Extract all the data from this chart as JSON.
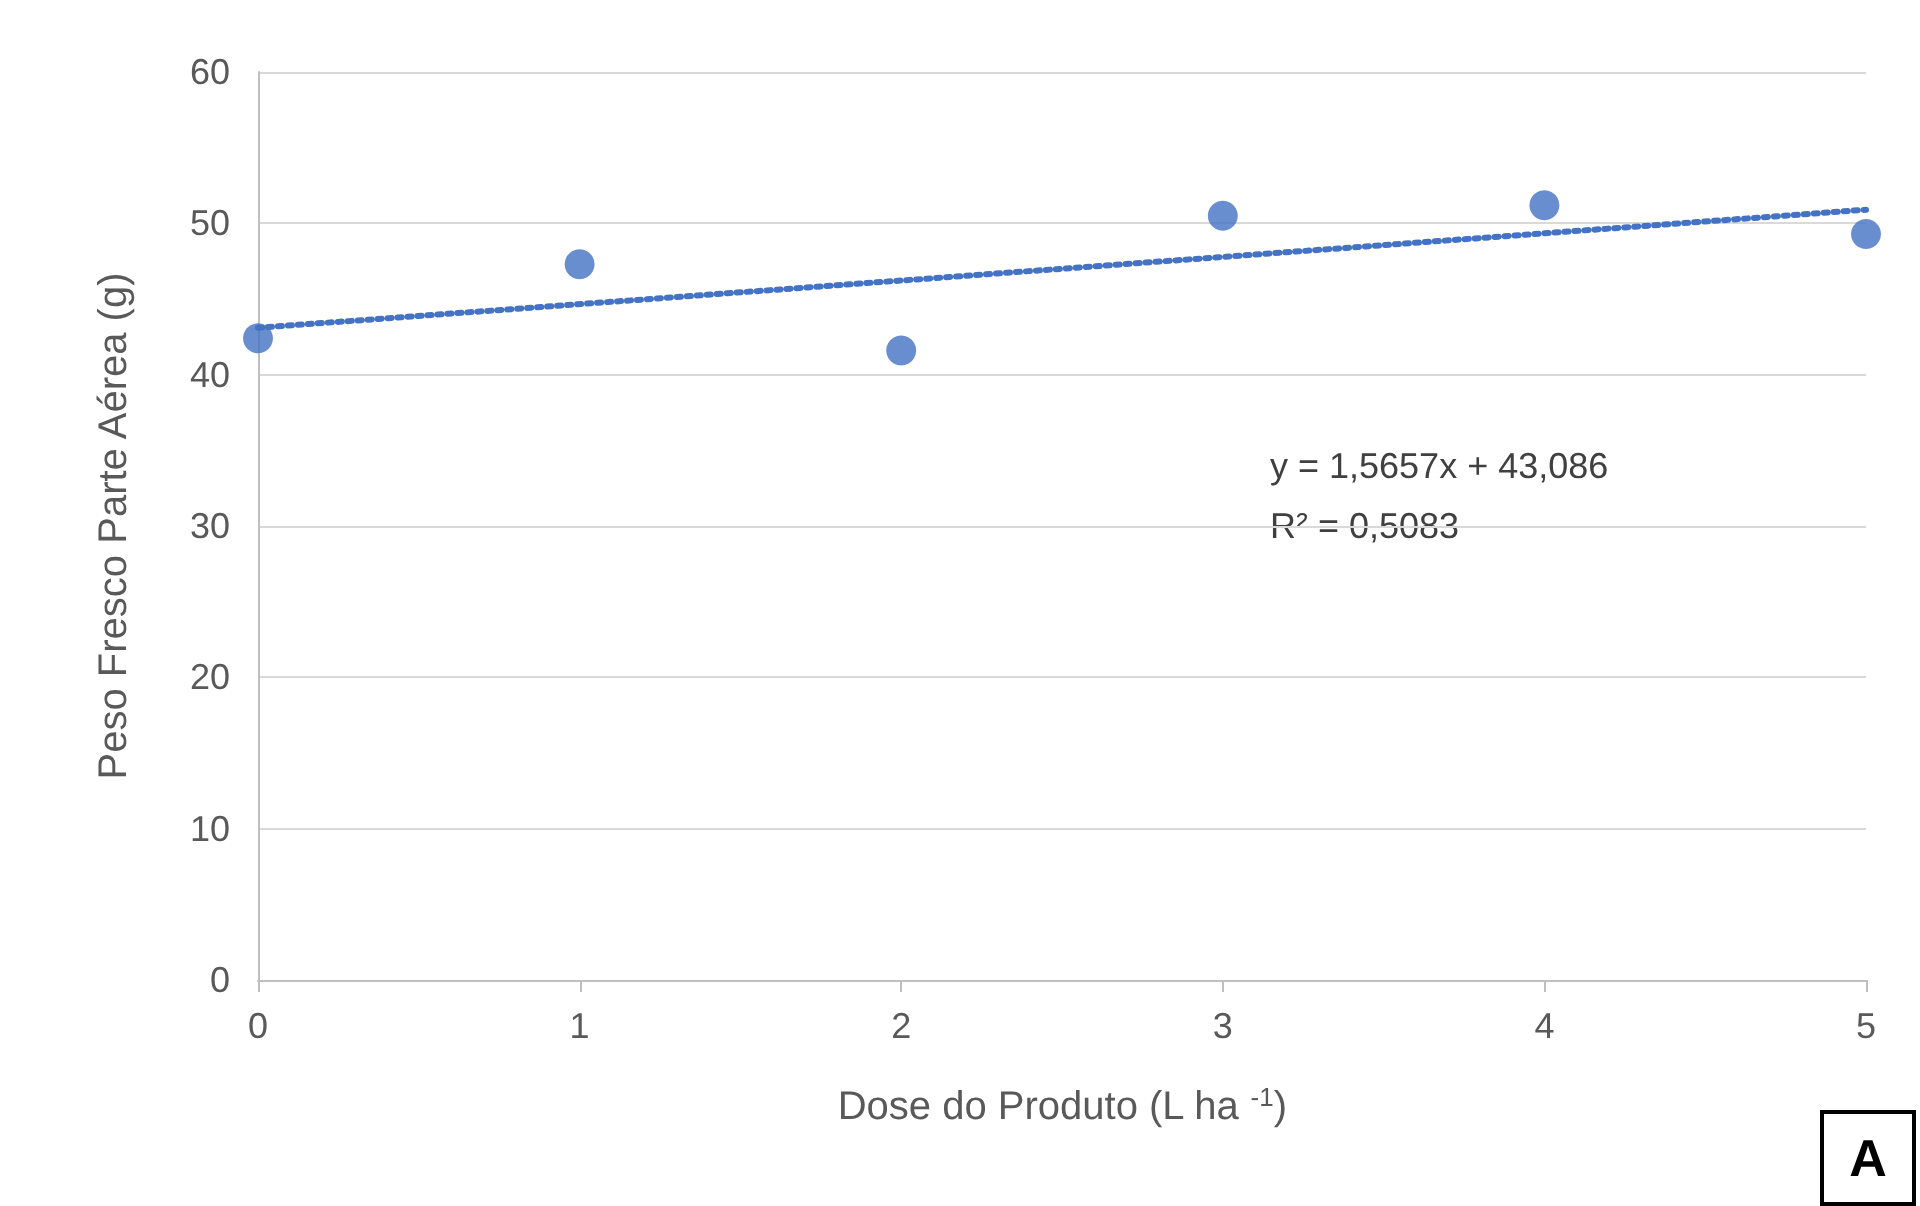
{
  "chart_data": {
    "type": "scatter",
    "xlabel": "Dose do Produto (L ha $^{-1}$)",
    "ylabel": "Peso Fresco Parte Aérea (g)",
    "xlim": [
      0,
      5
    ],
    "xticks": [
      0,
      1,
      2,
      3,
      4,
      5
    ],
    "ylim": [
      0,
      60
    ],
    "yticks": [
      0,
      10,
      20,
      30,
      40,
      50,
      60
    ],
    "grid": "y",
    "marker": "circle",
    "series": [
      {
        "color": "#4472c4",
        "x": [
          0,
          1,
          2,
          3,
          4,
          5
        ],
        "values": [
          42.4,
          47.3,
          41.6,
          50.5,
          51.2,
          49.3
        ]
      },
      {
        "type": "line",
        "color": "#4472c4",
        "x": [
          0,
          5
        ],
        "values": [
          43.1,
          50.9
        ],
        "line_style": "dotted",
        "marker": "none"
      }
    ],
    "annotations": [
      "y = 1,5657x + 43,086",
      "R² = 0,5083",
      "A"
    ]
  }
}
